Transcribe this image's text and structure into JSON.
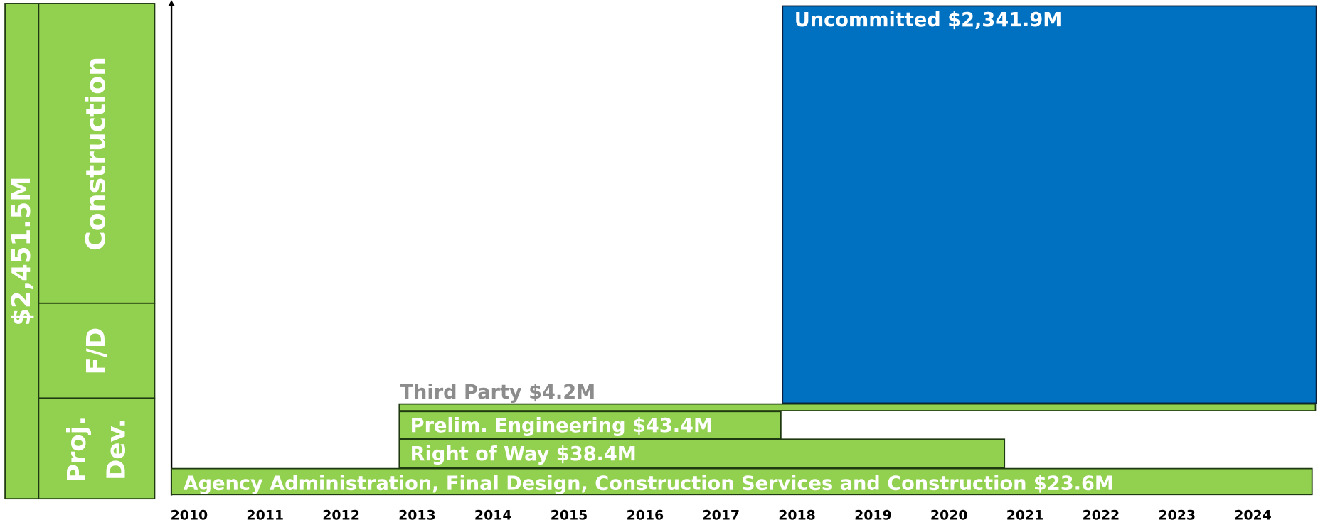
{
  "left_panel": {
    "total": "$2,451.5M",
    "phases": {
      "construction": "Construction",
      "final_design": "F/D",
      "project_development": [
        "Proj.",
        "Dev."
      ]
    }
  },
  "bars": [
    {
      "label": "Uncommitted $2,341.9M"
    },
    {
      "label": "Third Party $4.2M"
    },
    {
      "label": "Prelim. Engineering $43.4M"
    },
    {
      "label": "Right of Way $38.4M"
    },
    {
      "label": "Agency Administration, Final Design, Construction Services and Construction $23.6M"
    }
  ],
  "years": [
    "2010",
    "2011",
    "2012",
    "2013",
    "2014",
    "2015",
    "2016",
    "2017",
    "2018",
    "2019",
    "2020",
    "2021",
    "2022",
    "2023",
    "2024"
  ]
}
